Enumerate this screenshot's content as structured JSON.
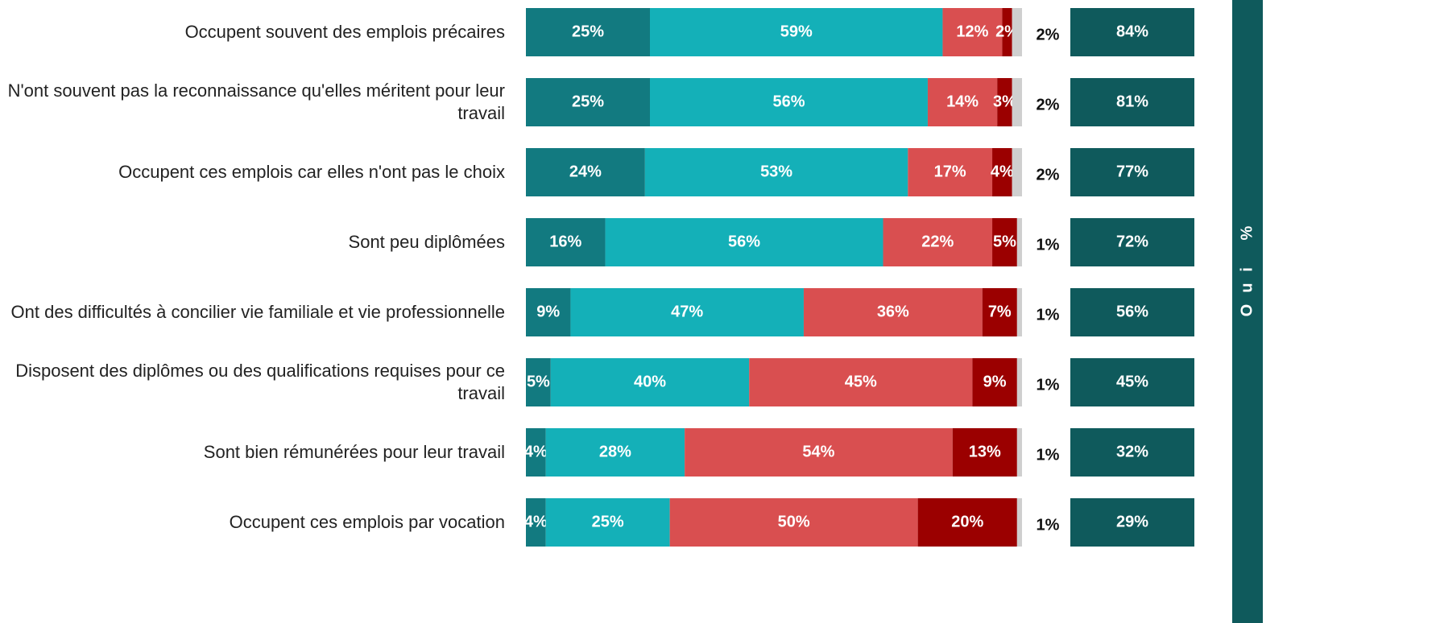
{
  "chart_data": {
    "type": "stacked-bar",
    "categories": [
      "Occupent souvent des emplois précaires",
      "N'ont souvent pas la reconnaissance qu'elles méritent pour leur travail",
      "Occupent ces emplois car elles n'ont pas le choix",
      "Sont peu diplômées",
      "Ont des difficultés à concilier vie familiale et vie professionnelle",
      "Disposent des diplômes ou des qualifications requises pour ce travail",
      "Sont bien rémunérées pour leur travail",
      "Occupent ces emplois par vocation"
    ],
    "series": [
      {
        "color": "#127a80",
        "values": [
          25,
          25,
          24,
          16,
          9,
          5,
          4,
          4
        ],
        "value_labels": [
          "25%",
          "25%",
          "24%",
          "16%",
          "9%",
          "5%",
          "4%",
          "4%"
        ]
      },
      {
        "color": "#14b0b8",
        "values": [
          59,
          56,
          53,
          56,
          47,
          40,
          28,
          25
        ],
        "value_labels": [
          "59%",
          "56%",
          "53%",
          "56%",
          "47%",
          "40%",
          "28%",
          "25%"
        ]
      },
      {
        "color": "#d94f50",
        "values": [
          12,
          14,
          17,
          22,
          36,
          45,
          54,
          50
        ],
        "value_labels": [
          "12%",
          "14%",
          "17%",
          "22%",
          "36%",
          "45%",
          "54%",
          "50%"
        ]
      },
      {
        "color": "#9b0000",
        "values": [
          2,
          3,
          4,
          5,
          7,
          9,
          13,
          20
        ],
        "value_labels": [
          "2%",
          "3%",
          "4%",
          "5%",
          "7%",
          "9%",
          "13%",
          "20%"
        ]
      },
      {
        "color": "#cfcfcf",
        "values": [
          2,
          2,
          2,
          1,
          1,
          1,
          1,
          1
        ],
        "value_labels": [
          "2%",
          "2%",
          "2%",
          "1%",
          "1%",
          "1%",
          "1%",
          "1%"
        ]
      }
    ],
    "total_label": "Oui %",
    "totals": {
      "color": "#0f5a5c",
      "values": [
        84,
        81,
        77,
        72,
        56,
        45,
        32,
        29
      ],
      "value_labels": [
        "84%",
        "81%",
        "77%",
        "72%",
        "56%",
        "45%",
        "32%",
        "29%"
      ]
    }
  }
}
